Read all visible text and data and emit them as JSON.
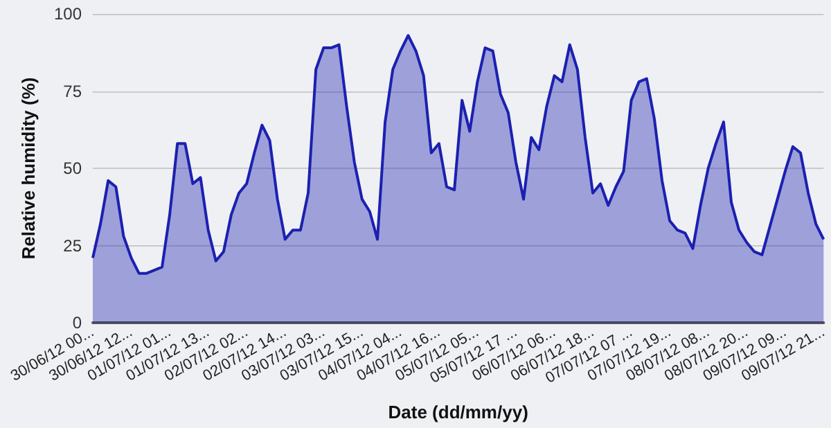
{
  "chart_data": {
    "type": "area",
    "xlabel": "Date (dd/mm/yy)",
    "ylabel": "Relative humidity (%)",
    "categories": [
      "30/06/12 00...",
      null,
      null,
      null,
      null,
      "30/06/12 12...",
      null,
      null,
      null,
      null,
      "01/07/12 01...",
      null,
      null,
      null,
      null,
      "01/07/12 13...",
      null,
      null,
      null,
      null,
      "02/07/12 02...",
      null,
      null,
      null,
      null,
      "02/07/12 14...",
      null,
      null,
      null,
      null,
      "03/07/12 03...",
      null,
      null,
      null,
      null,
      "03/07/12 15...",
      null,
      null,
      null,
      null,
      "04/07/12 04...",
      null,
      null,
      null,
      null,
      "04/07/12 16...",
      null,
      null,
      null,
      null,
      "05/07/12 05...",
      null,
      null,
      null,
      null,
      "05/07/12 17 ...",
      null,
      null,
      null,
      null,
      "06/07/12 06...",
      null,
      null,
      null,
      null,
      "06/07/12 18...",
      null,
      null,
      null,
      null,
      "07/07/12 07 ...",
      null,
      null,
      null,
      null,
      "07/07/12 19...",
      null,
      null,
      null,
      null,
      "08/07/12 08...",
      null,
      null,
      null,
      null,
      "08/07/12 20...",
      null,
      null,
      null,
      null,
      "09/07/12 09...",
      null,
      null,
      null,
      null,
      "09/07/12 21..."
    ],
    "series": [
      {
        "color": "#1c20b0",
        "values": [
          21,
          32,
          46,
          44,
          28,
          21,
          16,
          16,
          17,
          18,
          35,
          58,
          58,
          45,
          47,
          30,
          20,
          23,
          35,
          42,
          45,
          55,
          64,
          59,
          40,
          27,
          30,
          30,
          42,
          82,
          89,
          89,
          90,
          70,
          52,
          40,
          36,
          27,
          65,
          82,
          88,
          93,
          88,
          80,
          55,
          58,
          44,
          43,
          72,
          62,
          78,
          89,
          88,
          74,
          68,
          52,
          40,
          60,
          56,
          70,
          80,
          78,
          90,
          82,
          60,
          42,
          45,
          38,
          44,
          49,
          72,
          78,
          79,
          66,
          46,
          33,
          30,
          29,
          24,
          38,
          50,
          58,
          65,
          39,
          30,
          26,
          23,
          22,
          31,
          40,
          49,
          57,
          55,
          42,
          32,
          27
        ]
      }
    ],
    "ylim": [
      0,
      100
    ],
    "yticks": [
      0,
      25,
      50,
      75,
      100
    ],
    "grid": "y",
    "marker": "none"
  }
}
